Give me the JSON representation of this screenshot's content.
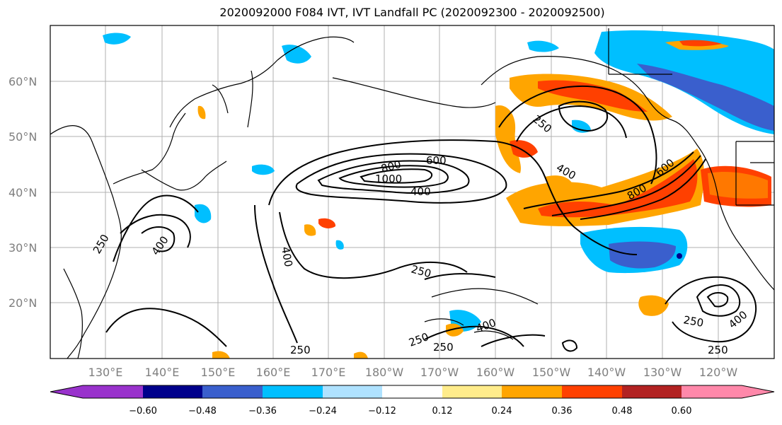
{
  "title": "2020092000 F084 IVT, IVT Landfall PC (2020092300 - 2020092500)",
  "map": {
    "lat_labels": [
      "60°N",
      "50°N",
      "40°N",
      "30°N",
      "20°N"
    ],
    "lon_labels": [
      "130°E",
      "140°E",
      "150°E",
      "160°E",
      "170°E",
      "180°W",
      "170°W",
      "160°W",
      "150°W",
      "140°W",
      "130°W",
      "120°W"
    ],
    "contour_labels": [
      "250",
      "400",
      "600",
      "800",
      "1000",
      "400",
      "250",
      "600",
      "800",
      "400",
      "250",
      "250",
      "400",
      "250",
      "250",
      "400",
      "250",
      "400",
      "250"
    ]
  },
  "colorbar": {
    "ticks": [
      "−0.60",
      "−0.48",
      "−0.36",
      "−0.24",
      "−0.12",
      "0.12",
      "0.24",
      "0.36",
      "0.48",
      "0.60"
    ],
    "colors": [
      "#9932cc",
      "#00008b",
      "#3a5fcd",
      "#00bfff",
      "#afe2ff",
      "#ffffff",
      "#ffec8b",
      "#ffa500",
      "#ff4000",
      "#b22222",
      "#ff88aa"
    ]
  }
}
